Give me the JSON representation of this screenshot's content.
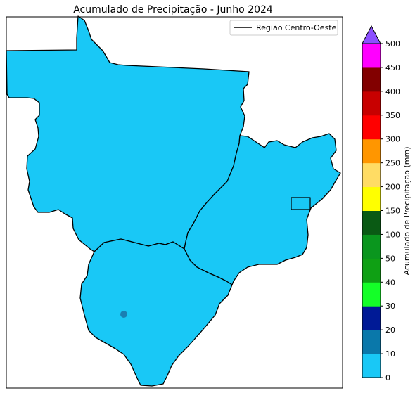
{
  "title": "Acumulado de Precipitação - Junho 2024",
  "legend": {
    "label": "Região Centro-Oeste",
    "line_color": "#000000",
    "placement": "top-right"
  },
  "map": {
    "fill_color": "#19c8f6",
    "spot_color": "#1a7fb3",
    "border_color": "#000000"
  },
  "colorbar": {
    "label": "Acumulado de Precipitação (mm)",
    "extend": "max",
    "levels": [
      {
        "label": "0",
        "color": "#19c8f6"
      },
      {
        "label": "10",
        "color": "#0a78aa"
      },
      {
        "label": "20",
        "color": "#001a96"
      },
      {
        "label": "30",
        "color": "#14ff28"
      },
      {
        "label": "40",
        "color": "#0fa014"
      },
      {
        "label": "50",
        "color": "#0a961e"
      },
      {
        "label": "100",
        "color": "#0a5a14"
      },
      {
        "label": "150",
        "color": "#ffff00"
      },
      {
        "label": "200",
        "color": "#ffdc64"
      },
      {
        "label": "250",
        "color": "#ff9600"
      },
      {
        "label": "300",
        "color": "#ff0000"
      },
      {
        "label": "350",
        "color": "#c80000"
      },
      {
        "label": "400",
        "color": "#820000"
      },
      {
        "label": "450",
        "color": "#ff00ff"
      },
      {
        "label": "500",
        "color": "#8c50ff"
      }
    ]
  }
}
